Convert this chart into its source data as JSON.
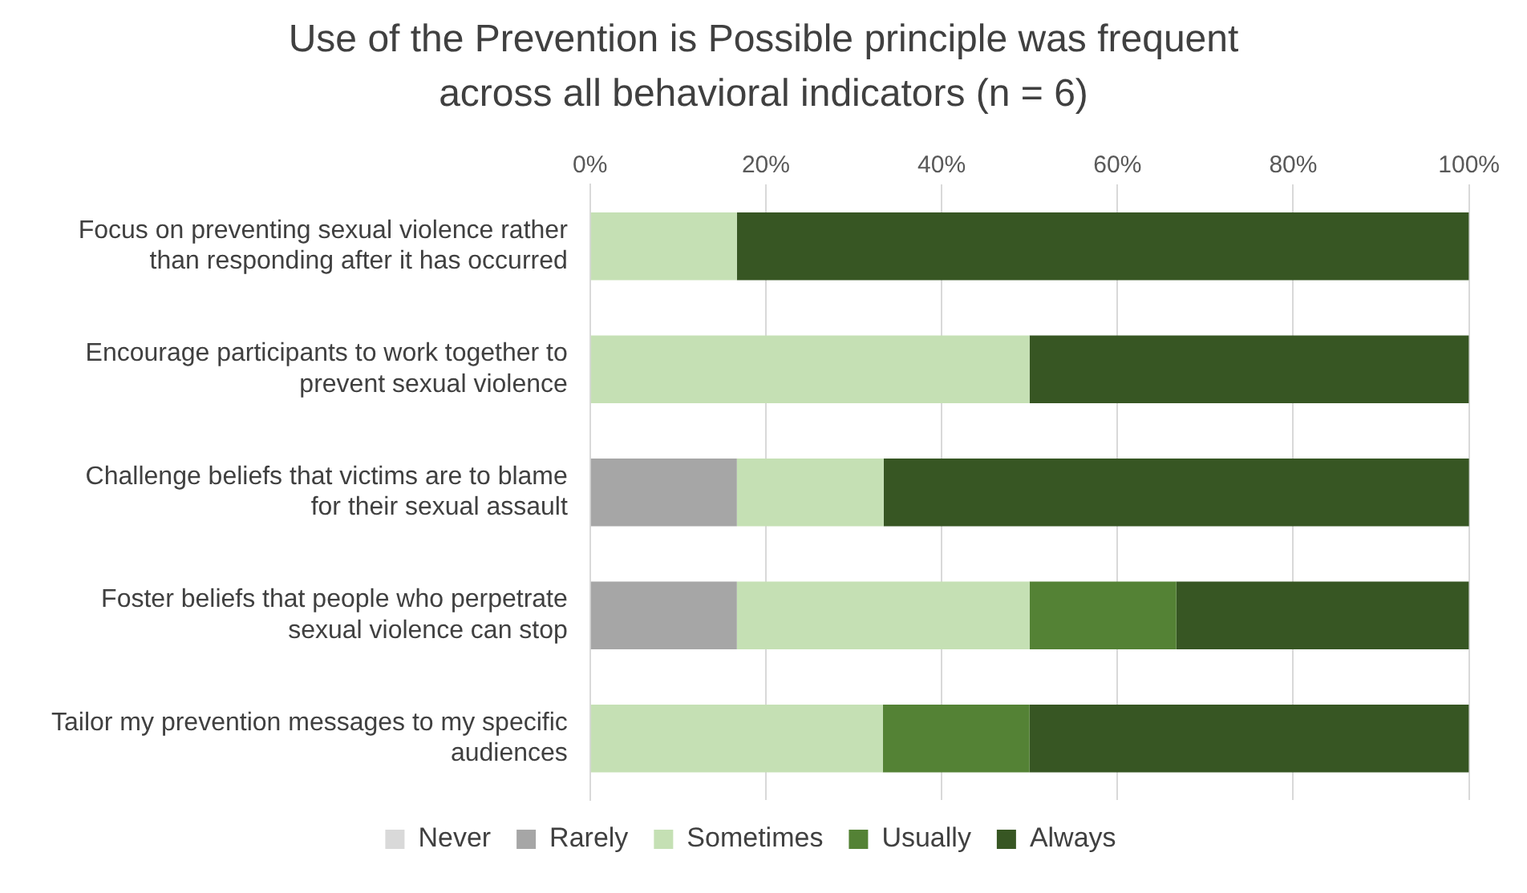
{
  "chart_data": {
    "type": "bar",
    "orientation": "horizontal",
    "stacked": true,
    "title": "Use of the Prevention is Possible principle was frequent across all behavioral indicators (n = 6)",
    "categories": [
      "Focus on preventing sexual violence rather than responding after it has occurred",
      "Encourage participants to work together to prevent sexual violence",
      "Challenge beliefs that victims are to blame for their sexual assault",
      "Foster beliefs that people who perpetrate sexual violence can stop",
      "Tailor my prevention messages to my specific audiences"
    ],
    "series": [
      {
        "name": "Never",
        "color": "#d9d9d9",
        "values": [
          0,
          0,
          0,
          0,
          0
        ]
      },
      {
        "name": "Rarely",
        "color": "#a6a6a6",
        "values": [
          0,
          0,
          16.7,
          16.7,
          0
        ]
      },
      {
        "name": "Sometimes",
        "color": "#c5e0b4",
        "values": [
          16.7,
          50,
          16.7,
          33.3,
          33.3
        ]
      },
      {
        "name": "Usually",
        "color": "#548235",
        "values": [
          0,
          0,
          0,
          16.7,
          16.7
        ]
      },
      {
        "name": "Always",
        "color": "#375623",
        "values": [
          83.3,
          50,
          66.7,
          33.3,
          50
        ]
      }
    ],
    "xlim": [
      0,
      100
    ],
    "xticks": [
      {
        "value": 0,
        "label": "0%"
      },
      {
        "value": 20,
        "label": "20%"
      },
      {
        "value": 40,
        "label": "40%"
      },
      {
        "value": 60,
        "label": "60%"
      },
      {
        "value": 80,
        "label": "80%"
      },
      {
        "value": 100,
        "label": "100%"
      }
    ],
    "grid": "x",
    "legend": "bottom"
  }
}
